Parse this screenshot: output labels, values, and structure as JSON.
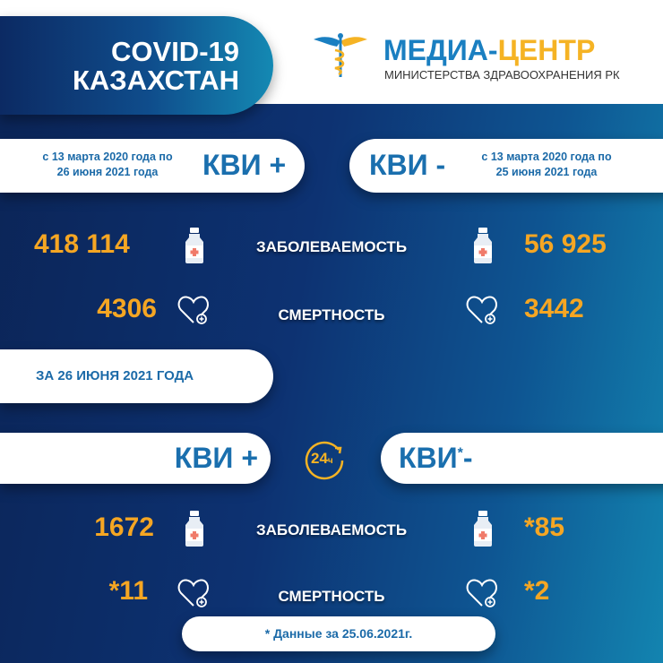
{
  "header": {
    "title_line1": "COVID-19",
    "title_line2": "КАЗАХСТАН",
    "logo_part1": "МЕДИА-",
    "logo_part2": "ЦЕНТР",
    "logo_subtitle": "МИНИСТЕРСТВА ЗДРАВООХРАНЕНИЯ РК"
  },
  "cumulative": {
    "positive": {
      "label": "КВИ +",
      "period_line1": "с 13 марта 2020 года по",
      "period_line2": "26 июня 2021 года",
      "cases": "418 114",
      "deaths": "4306"
    },
    "negative": {
      "label": "КВИ -",
      "period_line1": "с 13 марта 2020 года по",
      "period_line2": "25 июня 2021 года",
      "cases": "56 925",
      "deaths": "3442"
    }
  },
  "labels": {
    "cases": "ЗАБОЛЕВАЕМОСТЬ",
    "deaths": "СМЕРТНОСТЬ"
  },
  "daily": {
    "date_label": "ЗА 26 ИЮНЯ 2021 ГОДА",
    "badge": "24",
    "badge_suffix": "ч",
    "positive": {
      "label": "КВИ +",
      "cases": "1672",
      "deaths": "*11"
    },
    "negative": {
      "label": "КВИ",
      "asterisk": "*",
      "suffix": "-",
      "cases": "*85",
      "deaths": "*2"
    }
  },
  "footer": {
    "note": "* Данные за 25.06.2021г."
  },
  "colors": {
    "orange": "#f5a623",
    "blue": "#1a6fae",
    "navy": "#0b2456",
    "teal": "#1384b0"
  },
  "icons": [
    "caduceus-icon",
    "medicine-bottle-icon",
    "heart-plus-icon",
    "24-hour-clock-icon"
  ]
}
